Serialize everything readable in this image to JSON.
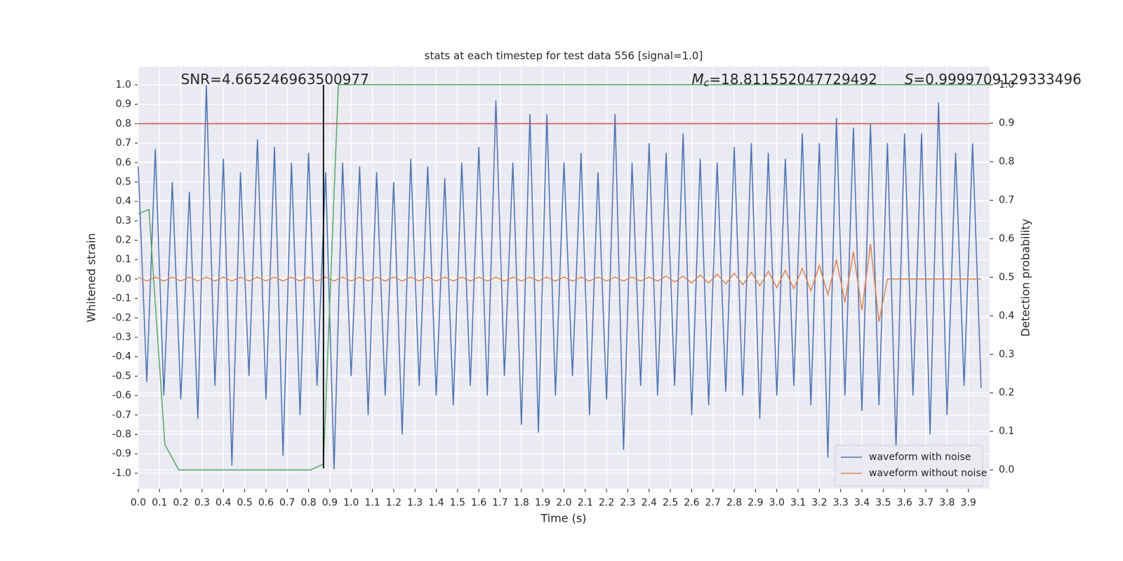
{
  "chart_data": {
    "type": "line",
    "title": "stats at each timestep for test data 556 [signal=1.0]",
    "xlabel": "Time (s)",
    "ylabel": "Whitened strain",
    "y2label": "Detection probability",
    "xlim": [
      0,
      4.0
    ],
    "ylim": [
      -1.08,
      1.094
    ],
    "y2lim": [
      -0.049,
      1.047
    ],
    "xticks": [
      {
        "value": 0,
        "label": "0.0"
      },
      0.1,
      0.2,
      0.3,
      0.4,
      0.5,
      0.6,
      0.7,
      0.8,
      0.9,
      {
        "value": 1,
        "label": "1.0"
      },
      1.1,
      1.2,
      1.3,
      1.4,
      1.5,
      1.6,
      1.7,
      1.8,
      1.9,
      {
        "value": 2,
        "label": "2.0"
      },
      2.1,
      2.2,
      2.3,
      2.4,
      2.5,
      2.6,
      2.7,
      2.8,
      2.9,
      {
        "value": 3,
        "label": "3.0"
      },
      3.1,
      3.2,
      3.3,
      3.4,
      3.5,
      3.6,
      3.7,
      3.8,
      3.9
    ],
    "yticks": [
      {
        "value": 1,
        "label": "1.0"
      },
      0.9,
      0.8,
      0.7,
      0.6,
      0.5,
      0.4,
      0.3,
      0.2,
      0.1,
      {
        "value": 0,
        "label": "0.0"
      },
      -0.1,
      -0.2,
      -0.3,
      -0.4,
      -0.5,
      -0.6,
      -0.7,
      -0.8,
      -0.9,
      {
        "value": -1,
        "label": "-1.0"
      }
    ],
    "y2ticks": [
      {
        "value": 0,
        "label": "0.0"
      },
      0.1,
      0.2,
      0.3,
      0.4,
      0.5,
      0.6,
      0.7,
      0.8,
      0.9,
      {
        "value": 1,
        "label": "1.0"
      }
    ],
    "grid": true,
    "legend": "lower right",
    "x": [
      0,
      0.04,
      0.08,
      0.12,
      0.16,
      0.2,
      0.24,
      0.28,
      0.32,
      0.36,
      0.4,
      0.44,
      0.48,
      0.52,
      0.56,
      0.6,
      0.64,
      0.68,
      0.72,
      0.76,
      0.8,
      0.84,
      0.88,
      0.92,
      0.96,
      1.0,
      1.04,
      1.08,
      1.12,
      1.16,
      1.2,
      1.24,
      1.28,
      1.32,
      1.36,
      1.4,
      1.44,
      1.48,
      1.52,
      1.56,
      1.6,
      1.64,
      1.68,
      1.72,
      1.76,
      1.8,
      1.84,
      1.88,
      1.92,
      1.96,
      2.0,
      2.04,
      2.08,
      2.12,
      2.16,
      2.2,
      2.24,
      2.28,
      2.32,
      2.36,
      2.4,
      2.44,
      2.48,
      2.52,
      2.56,
      2.6,
      2.64,
      2.68,
      2.72,
      2.76,
      2.8,
      2.84,
      2.88,
      2.92,
      2.96,
      3.0,
      3.04,
      3.08,
      3.12,
      3.16,
      3.2,
      3.24,
      3.28,
      3.32,
      3.36,
      3.4,
      3.44,
      3.48,
      3.52,
      3.56,
      3.6,
      3.64,
      3.68,
      3.72,
      3.76,
      3.8,
      3.84,
      3.88,
      3.92,
      3.96
    ],
    "series": [
      {
        "name": "waveform with noise",
        "color": "#4c72b0",
        "values": [
          0.58,
          -0.53,
          0.67,
          -0.6,
          0.5,
          -0.62,
          0.45,
          -0.72,
          1.0,
          -0.55,
          0.62,
          -0.96,
          0.55,
          -0.5,
          0.72,
          -0.62,
          0.68,
          -0.91,
          0.6,
          -0.7,
          0.65,
          -0.55,
          0.55,
          -0.98,
          0.6,
          -0.5,
          0.58,
          -0.7,
          0.55,
          -0.6,
          0.5,
          -0.8,
          0.62,
          -0.55,
          0.58,
          -0.6,
          0.52,
          -0.65,
          0.6,
          -0.55,
          0.68,
          -0.6,
          0.92,
          -0.5,
          0.6,
          -0.75,
          0.85,
          -0.79,
          0.85,
          -0.6,
          0.6,
          -0.5,
          0.65,
          -0.7,
          0.55,
          -0.62,
          0.85,
          -0.88,
          0.6,
          -0.55,
          0.7,
          -0.6,
          0.65,
          -0.55,
          0.75,
          -0.7,
          0.62,
          -0.65,
          0.6,
          -0.58,
          0.68,
          -0.6,
          0.7,
          -0.72,
          0.65,
          -0.6,
          0.62,
          -0.55,
          0.75,
          -0.65,
          0.7,
          -0.92,
          0.83,
          -0.6,
          0.78,
          -0.68,
          0.8,
          -0.65,
          0.7,
          -0.87,
          0.75,
          -0.6,
          0.75,
          -0.8,
          0.91,
          -0.7,
          0.65,
          -0.55,
          0.7,
          -0.56
        ]
      },
      {
        "name": "waveform without noise",
        "color": "#dd8452",
        "values": [
          0.01,
          -0.01,
          0.01,
          -0.01,
          0.01,
          -0.01,
          0.01,
          -0.01,
          0.01,
          -0.01,
          0.01,
          -0.01,
          0.01,
          -0.01,
          0.01,
          -0.01,
          0.01,
          -0.01,
          0.01,
          -0.01,
          0.01,
          -0.01,
          0.01,
          -0.01,
          0.01,
          -0.01,
          0.01,
          -0.01,
          0.01,
          -0.01,
          0.01,
          -0.01,
          0.01,
          -0.01,
          0.01,
          -0.01,
          0.01,
          -0.01,
          0.01,
          -0.01,
          0.01,
          -0.01,
          0.01,
          -0.01,
          0.01,
          -0.01,
          0.01,
          -0.01,
          0.01,
          -0.01,
          0.01,
          -0.01,
          0.01,
          -0.01,
          0.01,
          -0.01,
          0.01,
          -0.01,
          0.01,
          -0.01,
          0.01,
          -0.01,
          0.015,
          -0.015,
          0.015,
          -0.02,
          0.02,
          -0.02,
          0.025,
          -0.025,
          0.03,
          -0.03,
          0.035,
          -0.035,
          0.04,
          -0.045,
          0.045,
          -0.05,
          0.055,
          -0.06,
          0.07,
          -0.08,
          0.1,
          -0.12,
          0.14,
          -0.16,
          0.18,
          -0.22,
          0,
          0,
          0,
          0,
          0,
          0,
          0,
          0,
          0,
          0,
          0,
          0
        ]
      },
      {
        "name": "detection probability",
        "color": "#55a868",
        "axis": "y2",
        "legend": false,
        "x": [
          0,
          0.05,
          0.125,
          0.19,
          0.81,
          0.87,
          0.94,
          4.0
        ],
        "values": [
          0.665,
          0.676,
          0.066,
          0,
          0,
          0.015,
          1.0,
          1.0
        ]
      }
    ],
    "hline": {
      "value": 0.8,
      "color": "#c44e52"
    },
    "vline": {
      "value": 0.87,
      "ymin": -0.975,
      "ymax": 1.0,
      "color": "#000000"
    },
    "annotations": [
      {
        "text": "SNR=4.665246963500977",
        "x": 0.2,
        "y": 1.025
      },
      {
        "symbol": "M",
        "subscript": "c",
        "text": "=18.811552047729492",
        "x": 2.6,
        "y": 1.025
      },
      {
        "symbol": "S",
        "text": "=0.9999709129333496",
        "x": 3.6,
        "y": 1.025
      }
    ]
  }
}
